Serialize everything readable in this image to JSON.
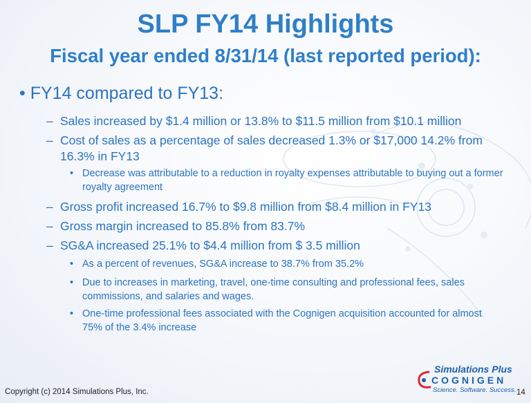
{
  "title": "SLP FY14 Highlights",
  "subtitle": "Fiscal year ended 8/31/14 (last reported period):",
  "main_bullet": {
    "marker": "•",
    "text": "FY14 compared to FY13:"
  },
  "items": [
    {
      "marker": "–",
      "text": "Sales increased by $1.4 million or 13.8% to $11.5 million from $10.1 million"
    },
    {
      "marker": "–",
      "text": "Cost of sales as a percentage of sales decreased 1.3% or $17,000 14.2% from 16.3% in FY13"
    },
    {
      "marker": "•",
      "text": "Decrease was attributable to a reduction in royalty expenses attributable to buying out a former royalty agreement"
    },
    {
      "marker": "–",
      "text": "Gross profit increased 16.7% to $9.8 million from $8.4 million in FY13"
    },
    {
      "marker": "–",
      "text": "Gross margin increased to 85.8% from 83.7%"
    },
    {
      "marker": "–",
      "text": "SG&A increased 25.1% to $4.4 million from $ 3.5 million"
    },
    {
      "marker": "•",
      "text": "As a percent of revenues, SG&A increase to 38.7% from 35.2%"
    },
    {
      "marker": "•",
      "text": "Due to increases in marketing, travel, one-time consulting and professional fees, sales commissions, and salaries and wages."
    },
    {
      "marker": "•",
      "text": "One-time professional fees associated with the Cognigen acquisition accounted for almost 75% of the 3.4% increase"
    }
  ],
  "footer": {
    "copyright": "Copyright (c) 2014 Simulations Plus, Inc.",
    "page_number": "14"
  },
  "logo": {
    "line1": "Simulations Plus",
    "line2": "COGNIGEN",
    "tagline": "Science. Software. Success."
  },
  "colors": {
    "title": "#2f7fc8",
    "body_text": "#2b73c0",
    "logo": "#1d5fa8",
    "logo_accent": "#d9282f"
  }
}
